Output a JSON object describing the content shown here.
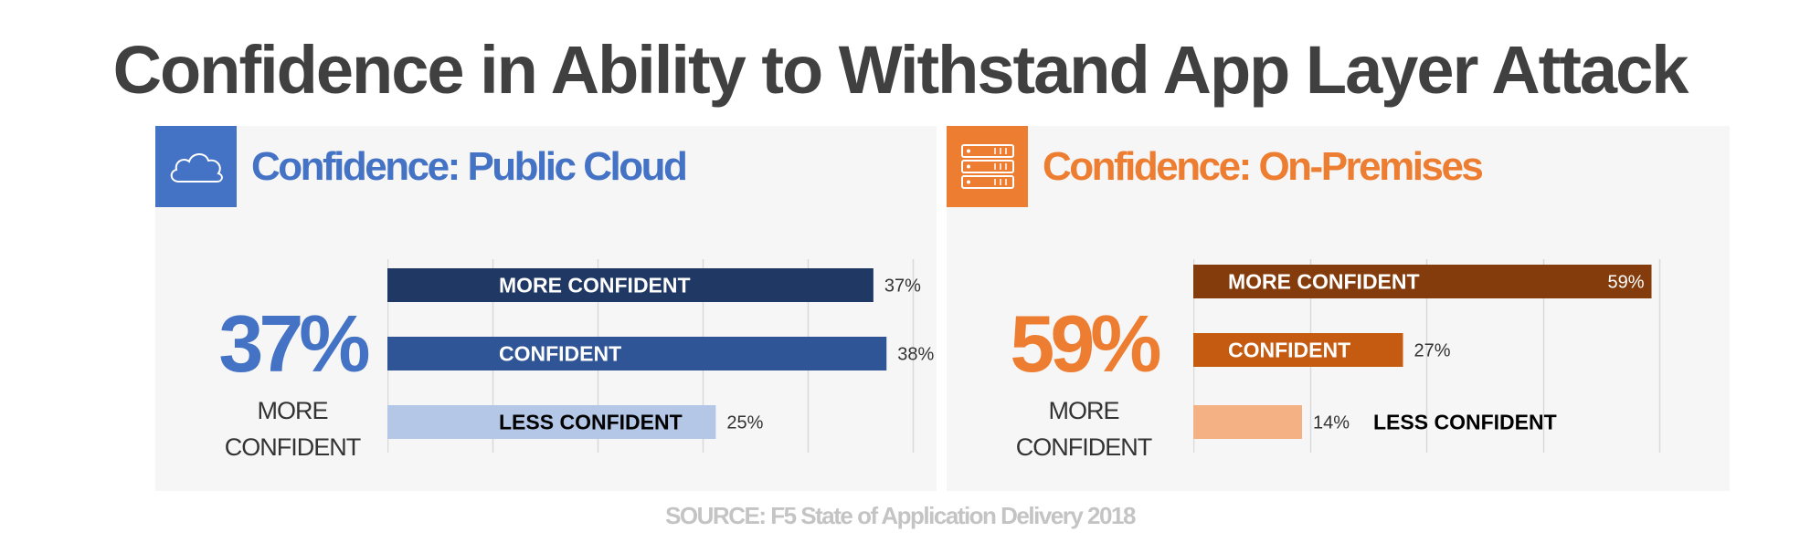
{
  "title": "Confidence in Ability to Withstand App Layer Attack",
  "source": "SOURCE: F5 State of Application Delivery 2018",
  "panels": [
    {
      "id": "cloud",
      "icon": "cloud-icon",
      "heading": "Confidence: Public Cloud",
      "accent": "#4472C4",
      "headline_value": "37%",
      "headline_label_line1": "MORE",
      "headline_label_line2": "CONFIDENT"
    },
    {
      "id": "onprem",
      "icon": "server-icon",
      "heading": "Confidence: On-Premises",
      "accent": "#ED7D31",
      "headline_value": "59%",
      "headline_label_line1": "MORE",
      "headline_label_line2": "CONFIDENT"
    }
  ],
  "chart_data": [
    {
      "type": "bar",
      "orientation": "horizontal",
      "categories": [
        "MORE CONFIDENT",
        "CONFIDENT",
        "LESS CONFIDENT"
      ],
      "values": [
        37,
        38,
        25
      ],
      "value_labels": [
        "37%",
        "38%",
        "25%"
      ],
      "colors": [
        "#203864",
        "#2F5597",
        "#B4C7E7"
      ],
      "label_colors": [
        "#ffffff",
        "#ffffff",
        "#000000"
      ],
      "xlim": [
        0,
        40
      ],
      "grid": true
    },
    {
      "type": "bar",
      "orientation": "horizontal",
      "categories": [
        "MORE CONFIDENT",
        "CONFIDENT",
        "LESS CONFIDENT"
      ],
      "values": [
        59,
        27,
        14
      ],
      "value_labels": [
        "59%",
        "27%",
        "14%"
      ],
      "colors": [
        "#843C0C",
        "#C55A11",
        "#F4B183"
      ],
      "label_colors": [
        "#ffffff",
        "#ffffff",
        "#000000"
      ],
      "xlim": [
        0,
        60
      ],
      "grid": true
    }
  ]
}
